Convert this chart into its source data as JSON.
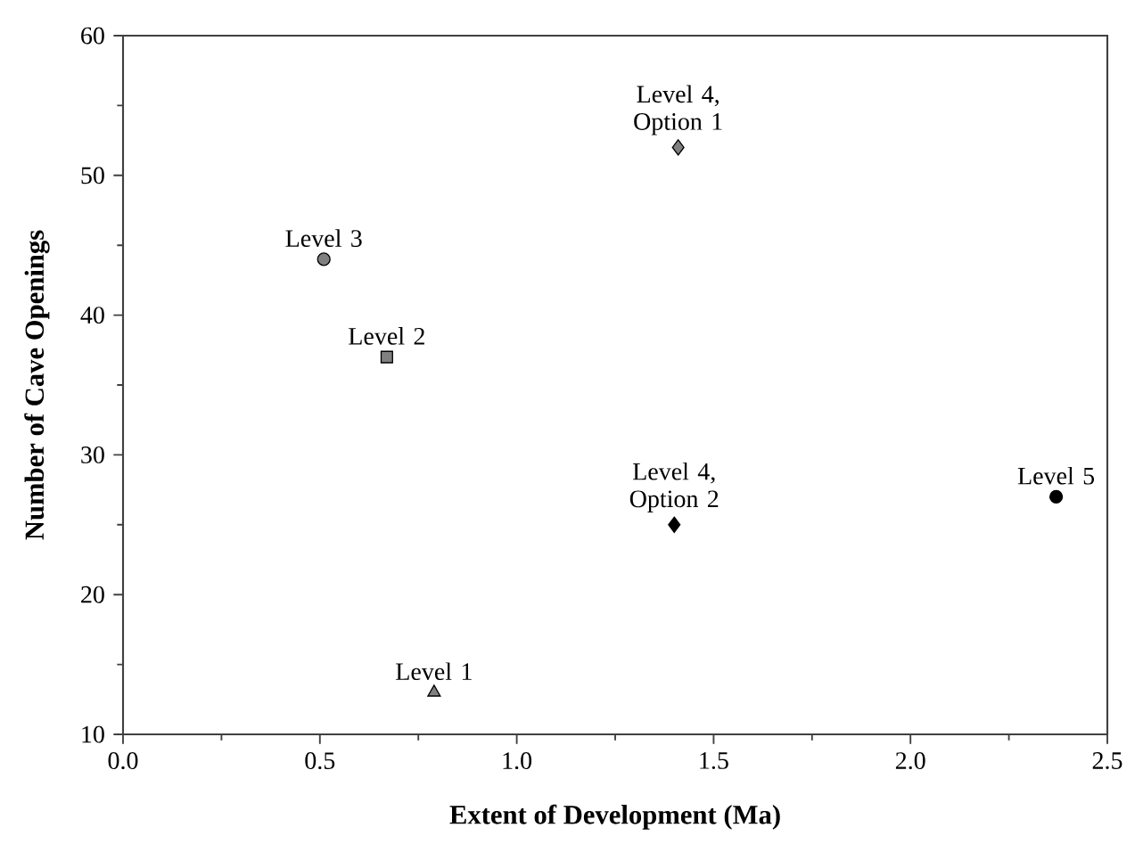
{
  "chart_data": {
    "type": "scatter",
    "xlabel": "Extent of Development (Ma)",
    "ylabel": "Number of Cave Openings",
    "xlim": [
      0,
      2.5
    ],
    "xticks": [
      {
        "value": 0,
        "label": "0.0"
      },
      0.5,
      {
        "value": 1,
        "label": "1.0"
      },
      1.5,
      {
        "value": 2,
        "label": "2.0"
      },
      2.5
    ],
    "ylim": [
      10,
      60
    ],
    "yticks": [
      10,
      20,
      30,
      40,
      50,
      60
    ],
    "grid": false,
    "legend": false,
    "series": [
      {
        "name": "Level 1",
        "color": "#808080",
        "marker": "triangle",
        "x": [
          0.79
        ],
        "values": [
          13
        ]
      },
      {
        "name": "Level 2",
        "color": "#808080",
        "marker": "square",
        "x": [
          0.67
        ],
        "values": [
          37
        ]
      },
      {
        "name": "Level 3",
        "color": "#808080",
        "marker": "circle",
        "x": [
          0.51
        ],
        "values": [
          44
        ]
      },
      {
        "name": "Level 4, Option 1",
        "color": "#808080",
        "marker": "diamond",
        "x": [
          1.41
        ],
        "values": [
          52
        ]
      },
      {
        "name": "Level 4, Option 2",
        "color": "#000000",
        "marker": "diamond",
        "x": [
          1.4
        ],
        "values": [
          25
        ]
      },
      {
        "name": "Level 5",
        "color": "#000000",
        "marker": "circle",
        "x": [
          2.37
        ],
        "values": [
          27
        ]
      }
    ]
  }
}
